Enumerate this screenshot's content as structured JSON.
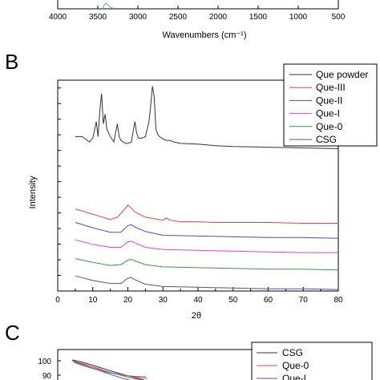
{
  "panels": {
    "A": {
      "label": "",
      "xlabel": "Wavenumbers (cm⁻¹)",
      "ticks": [
        "4000",
        "3500",
        "3000",
        "2500",
        "2000",
        "1500",
        "1000",
        "500"
      ]
    },
    "B": {
      "label": "B"
    },
    "C": {
      "label": "C",
      "ytick_values": [
        "100",
        "90"
      ],
      "legend": [
        "CSG",
        "Que-0",
        "Que-I"
      ]
    }
  },
  "colors": {
    "Que powder": "#333333",
    "Que-III": "#e84040",
    "Que-II": "#4a4ad0",
    "Que-I": "#e040e0",
    "Que-0": "#3a9a3a",
    "CSG": "#5050a8"
  },
  "chart_data": {
    "type": "line",
    "title": "",
    "xlabel": "2θ",
    "ylabel": "Intensity",
    "xlim": [
      0,
      80
    ],
    "x_ticks": [
      0,
      10,
      20,
      30,
      40,
      50,
      60,
      70,
      80
    ],
    "y_tick_labels": false,
    "legend_position": "top-right",
    "series": [
      {
        "name": "Que powder",
        "x": [
          5,
          7,
          9,
          10,
          11,
          11.5,
          12,
          12.5,
          13,
          13.5,
          14,
          15,
          16,
          16.5,
          17,
          17.5,
          18,
          19,
          20,
          21,
          21.5,
          22,
          22.5,
          23,
          24,
          25,
          26,
          26.5,
          27,
          27.5,
          28,
          28.5,
          29,
          30,
          31,
          32,
          33,
          35,
          40,
          45,
          50,
          60,
          70,
          80
        ],
        "y": [
          205,
          205,
          198,
          203,
          225,
          205,
          240,
          262,
          222,
          235,
          215,
          205,
          198,
          210,
          222,
          205,
          200,
          197,
          196,
          198,
          212,
          225,
          210,
          203,
          203,
          205,
          225,
          245,
          272,
          258,
          215,
          208,
          205,
          202,
          200,
          200,
          198,
          196,
          195,
          193,
          192,
          191,
          190,
          189
        ]
      },
      {
        "name": "Que-III",
        "x": [
          5,
          10,
          15,
          17,
          19,
          20,
          21,
          22,
          25,
          30,
          31,
          32,
          35,
          40,
          45,
          50,
          60,
          70,
          80
        ],
        "y": [
          109,
          102,
          95,
          98,
          108,
          114,
          110,
          105,
          98,
          94,
          97,
          94,
          92,
          92,
          91,
          91,
          91,
          90,
          90
        ]
      },
      {
        "name": "Que-II",
        "x": [
          5,
          10,
          15,
          18,
          20,
          21,
          22,
          25,
          30,
          40,
          50,
          60,
          70,
          80
        ],
        "y": [
          91,
          84,
          78,
          78,
          87,
          88,
          85,
          79,
          74,
          73,
          72,
          71,
          71,
          70
        ]
      },
      {
        "name": "Que-I",
        "x": [
          5,
          10,
          15,
          18,
          20,
          21,
          22,
          25,
          30,
          40,
          50,
          60,
          70,
          80
        ],
        "y": [
          68,
          62,
          58,
          58,
          65,
          66,
          64,
          58,
          55,
          54,
          53,
          52,
          51,
          51
        ]
      },
      {
        "name": "Que-0",
        "x": [
          5,
          10,
          15,
          18,
          20,
          21,
          22,
          25,
          30,
          40,
          50,
          60,
          70,
          80
        ],
        "y": [
          43,
          38,
          34,
          35,
          41,
          42,
          40,
          35,
          32,
          31,
          30,
          29,
          29,
          28
        ]
      },
      {
        "name": "CSG",
        "x": [
          5,
          10,
          15,
          18,
          20,
          21,
          22,
          25,
          30,
          40,
          50,
          60,
          70,
          80
        ],
        "y": [
          20,
          14,
          10,
          10,
          17,
          18,
          15,
          9,
          6,
          5,
          4,
          3,
          3,
          2
        ]
      }
    ]
  }
}
